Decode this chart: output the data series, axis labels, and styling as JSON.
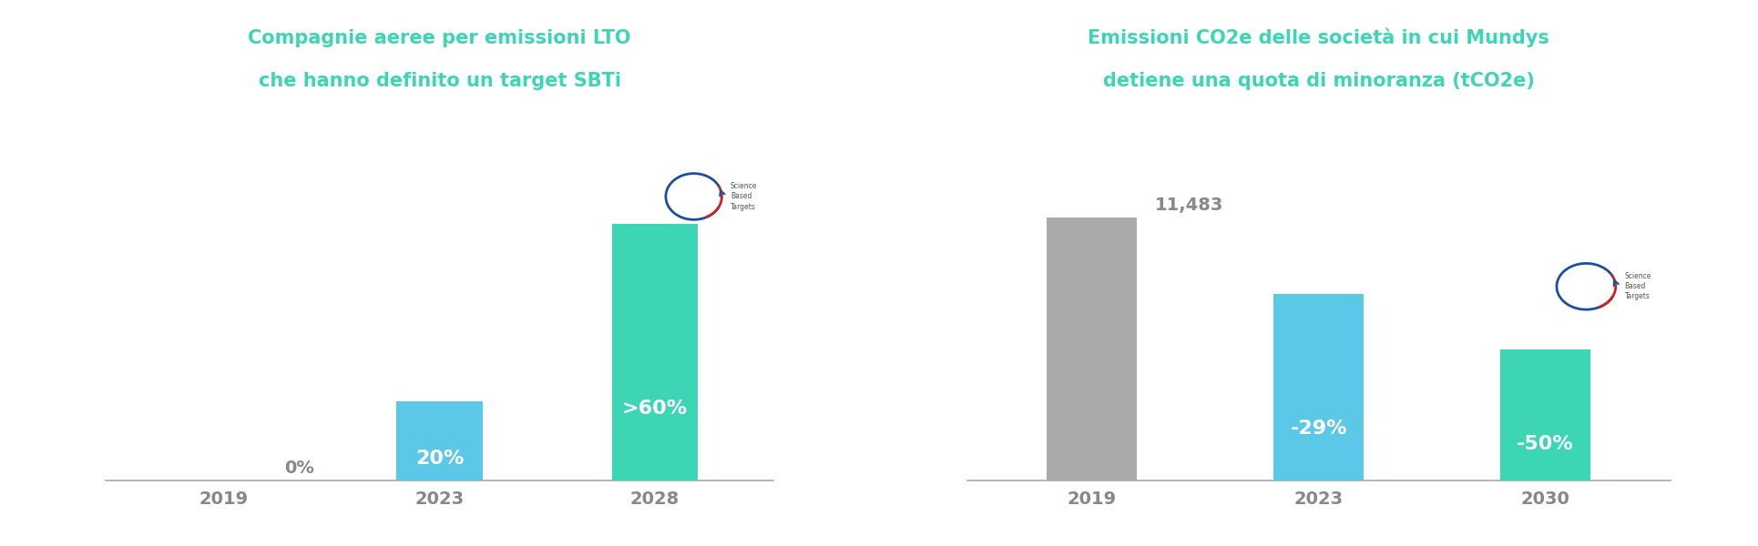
{
  "background_color": "#ffffff",
  "title_color": "#3dd6b5",
  "axis_line_color": "#aaaaaa",
  "tick_label_color": "#888888",
  "chart1": {
    "title_line1": "Compagnie aeree per emissioni LTO",
    "title_line2": "che hanno definito un target SBTi",
    "categories": [
      "2019",
      "2023",
      "2028"
    ],
    "values": [
      0.0,
      20,
      65
    ],
    "bar_colors": [
      "#ffffff",
      "#5bc8e8",
      "#3dd6b5"
    ],
    "bar_labels": [
      "0%",
      "20%",
      ">60%"
    ],
    "label_colors": [
      "#888888",
      "#ffffff",
      "#ffffff"
    ],
    "label_outside": [
      true,
      false,
      false
    ],
    "ylim": [
      0,
      90
    ]
  },
  "chart2": {
    "title_line1": "Emissioni CO2e delle società in cui Mundys",
    "title_line2": "detiene una quota di minoranza (tCO2e)",
    "categories": [
      "2019",
      "2023",
      "2030"
    ],
    "values": [
      100,
      71,
      50
    ],
    "bar_colors": [
      "#aaaaaa",
      "#5bc8e8",
      "#3dd6b5"
    ],
    "bar_labels": [
      "11,483",
      "-29%",
      "-50%"
    ],
    "label_colors": [
      "#888888",
      "#ffffff",
      "#ffffff"
    ],
    "label_outside": [
      true,
      false,
      false
    ],
    "ylim": [
      0,
      135
    ]
  }
}
